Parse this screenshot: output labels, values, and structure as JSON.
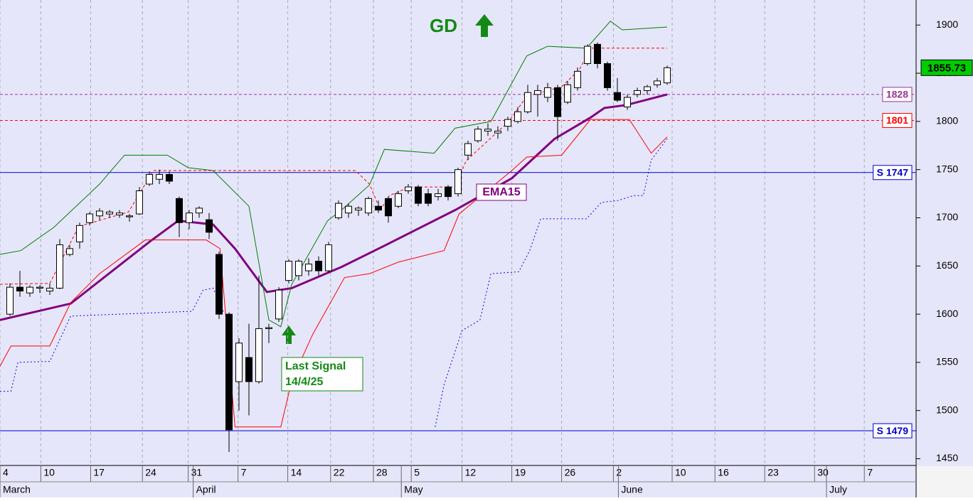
{
  "chart_data": {
    "type": "candlestick",
    "x": [
      1,
      2,
      3,
      4,
      5,
      6,
      7,
      8,
      9,
      10,
      11,
      12,
      13,
      14,
      15,
      16,
      17,
      18,
      19,
      20,
      21,
      22,
      23,
      24,
      25,
      26,
      27,
      28,
      29,
      30,
      31,
      32,
      33,
      34,
      35,
      36,
      37,
      38,
      39,
      40,
      41,
      42,
      43,
      44,
      45,
      46,
      47,
      48,
      49,
      50,
      51,
      52,
      53,
      54,
      55,
      56,
      57,
      58,
      59,
      60,
      61,
      62,
      63,
      64,
      65,
      66,
      67
    ],
    "open": [
      1600,
      1628,
      1622,
      1627,
      1624,
      1627,
      1662,
      1675,
      1695,
      1702,
      1704,
      1703,
      1701,
      1704,
      1735,
      1740,
      1745,
      1720,
      1695,
      1705,
      1698,
      1662,
      1600,
      1530,
      1555,
      1530,
      1585,
      1595,
      1635,
      1640,
      1645,
      1655,
      1645,
      1700,
      1705,
      1708,
      1705,
      1712,
      1720,
      1712,
      1728,
      1732,
      1725,
      1722,
      1732,
      1725,
      1765,
      1780,
      1790,
      1788,
      1795,
      1800,
      1810,
      1828,
      1825,
      1835,
      1820,
      1835,
      1860,
      1880,
      1860,
      1830,
      1815,
      1828,
      1832,
      1838,
      1840
    ],
    "high": [
      1632,
      1645,
      1630,
      1630,
      1632,
      1678,
      1672,
      1695,
      1706,
      1710,
      1708,
      1708,
      1704,
      1732,
      1748,
      1750,
      1748,
      1722,
      1708,
      1712,
      1705,
      1665,
      1602,
      1575,
      1590,
      1640,
      1590,
      1628,
      1657,
      1657,
      1658,
      1660,
      1675,
      1718,
      1715,
      1712,
      1722,
      1718,
      1722,
      1728,
      1735,
      1734,
      1730,
      1730,
      1734,
      1752,
      1780,
      1795,
      1798,
      1795,
      1805,
      1815,
      1838,
      1838,
      1840,
      1838,
      1842,
      1856,
      1880,
      1882,
      1862,
      1845,
      1828,
      1835,
      1838,
      1845,
      1858
    ],
    "low": [
      1598,
      1618,
      1618,
      1622,
      1620,
      1626,
      1660,
      1668,
      1692,
      1698,
      1700,
      1700,
      1696,
      1703,
      1733,
      1735,
      1735,
      1680,
      1688,
      1700,
      1678,
      1595,
      1457,
      1500,
      1495,
      1528,
      1570,
      1592,
      1632,
      1635,
      1640,
      1640,
      1643,
      1698,
      1700,
      1702,
      1702,
      1705,
      1695,
      1710,
      1725,
      1712,
      1712,
      1718,
      1718,
      1722,
      1760,
      1778,
      1785,
      1782,
      1790,
      1798,
      1808,
      1805,
      1820,
      1780,
      1818,
      1832,
      1858,
      1855,
      1832,
      1820,
      1812,
      1825,
      1828,
      1835,
      1838
    ],
    "close": [
      1628,
      1624,
      1628,
      1628,
      1627,
      1672,
      1668,
      1692,
      1704,
      1707,
      1706,
      1705,
      1702,
      1728,
      1745,
      1745,
      1738,
      1695,
      1705,
      1710,
      1685,
      1600,
      1480,
      1570,
      1530,
      1585,
      1586,
      1625,
      1655,
      1655,
      1652,
      1645,
      1672,
      1715,
      1712,
      1710,
      1720,
      1708,
      1702,
      1725,
      1732,
      1715,
      1715,
      1725,
      1722,
      1750,
      1777,
      1792,
      1792,
      1790,
      1802,
      1810,
      1830,
      1832,
      1835,
      1805,
      1838,
      1852,
      1878,
      1860,
      1835,
      1822,
      1825,
      1832,
      1836,
      1842,
      1855.73
    ],
    "up_color": "#ffffff",
    "down_color": "#000000",
    "lines": [
      {
        "color": "#800080",
        "style": "solid",
        "width": 3,
        "x": [
          0,
          7.1,
          15,
          17.9,
          21.4,
          23.6,
          26.8,
          29.3,
          34.3,
          38.6,
          45.7,
          51.4,
          55.7,
          59.3,
          60.7,
          62.9,
          67
        ],
        "values": [
          1594,
          1611,
          1675,
          1697,
          1693,
          1668,
          1623,
          1627,
          1649,
          1671,
          1708,
          1741,
          1782,
          1804,
          1814,
          1817,
          1828
        ]
      },
      {
        "color": "#008000",
        "style": "solid",
        "width": 1,
        "x": [
          0,
          2.1,
          5.4,
          10,
          12.5,
          16.8,
          18.9,
          21.4,
          25,
          27,
          28.2,
          29.3,
          32.9,
          34.3,
          37.1,
          38.6,
          43.6,
          45.7,
          49.3,
          52.9,
          55,
          58.9,
          61.3,
          62.5,
          67
        ],
        "values": [
          1662,
          1666,
          1690,
          1735,
          1765,
          1765,
          1752,
          1749,
          1712,
          1594,
          1587,
          1631,
          1697,
          1708,
          1734,
          1771,
          1767,
          1793,
          1800,
          1868,
          1878,
          1876,
          1904,
          1895,
          1898
        ]
      },
      {
        "color": "#ff0000",
        "style": "solid",
        "width": 1,
        "x": [
          0,
          1.1,
          5,
          7.1,
          10,
          14.6,
          20.7,
          22.1,
          23.6,
          28.2,
          29.3,
          31.4,
          34.6,
          37.1,
          40,
          44.6,
          46.1,
          51.4,
          52.9,
          56.4,
          59.3,
          63.2,
          65.4,
          67
        ],
        "values": [
          1546,
          1567,
          1567,
          1612,
          1642,
          1677,
          1677,
          1668,
          1483,
          1483,
          1531,
          1579,
          1638,
          1642,
          1654,
          1666,
          1704,
          1749,
          1763,
          1765,
          1802,
          1802,
          1767,
          1784
        ]
      },
      {
        "color": "#ff0000",
        "style": "dashed",
        "width": 1,
        "x": [
          0,
          5,
          7.9,
          12.9,
          15.4,
          35.7,
          37.1,
          38.2,
          39.1,
          41.1,
          45.7,
          46.8,
          51.1,
          52.9,
          56.4,
          58.2,
          59.3,
          67
        ],
        "values": [
          1631,
          1632,
          1691,
          1706,
          1749,
          1749,
          1735,
          1708,
          1723,
          1732,
          1732,
          1759,
          1800,
          1826,
          1836,
          1854,
          1876,
          1876
        ]
      },
      {
        "color": "#0000ff",
        "style": "dotted",
        "width": 1,
        "x": [
          0,
          1.1,
          1.8,
          5,
          7.1,
          19.3,
          20.4,
          21.4,
          22.5,
          33,
          43.7,
          44.6,
          46.4,
          48.2,
          49.3,
          52.1,
          53.2,
          54.3,
          58.9,
          60.4,
          62.1,
          63.6,
          64.6,
          65.4,
          67
        ],
        "values": [
          1520,
          1520,
          1550,
          1551,
          1598,
          1603,
          1625,
          1627,
          1601,
          null,
          1483,
          1527,
          1583,
          1594,
          1642,
          1644,
          1666,
          1699,
          1699,
          1716,
          1718,
          1723,
          1723,
          1760,
          1782
        ]
      }
    ],
    "levels": [
      {
        "value": 1828,
        "label": "1828",
        "color": "#993399",
        "style": "dashed"
      },
      {
        "value": 1801,
        "label": "1801",
        "color": "#ff0000",
        "style": "dashed"
      },
      {
        "value": 1747,
        "label": "S 1747",
        "color": "#0000cc",
        "style": "solid"
      },
      {
        "value": 1479,
        "label": "S 1479",
        "color": "#0000cc",
        "style": "solid"
      }
    ],
    "last_price": {
      "value": 1855.73,
      "label": "1855.73"
    },
    "xlim": [
      0,
      92
    ],
    "ylim": [
      1443,
      1926
    ],
    "yticks": [
      1450,
      1500,
      1550,
      1600,
      1650,
      1700,
      1750,
      1800,
      1850,
      1900
    ],
    "xticks": [
      {
        "value": 0,
        "label": "4"
      },
      {
        "value": 4.1,
        "label": "10"
      },
      {
        "value": 9.1,
        "label": "17"
      },
      {
        "value": 14.3,
        "label": "24"
      },
      {
        "value": 18.9,
        "label": "31"
      },
      {
        "value": 23.9,
        "label": "7"
      },
      {
        "value": 28.9,
        "label": "14"
      },
      {
        "value": 33.2,
        "label": "22"
      },
      {
        "value": 37.5,
        "label": "28"
      },
      {
        "value": 41.3,
        "label": "5"
      },
      {
        "value": 46.4,
        "label": "12"
      },
      {
        "value": 51.4,
        "label": "19"
      },
      {
        "value": 56.4,
        "label": "26"
      },
      {
        "value": 61.6,
        "label": "2"
      },
      {
        "value": 67.5,
        "label": "10"
      },
      {
        "value": 71.8,
        "label": "16"
      },
      {
        "value": 76.8,
        "label": "23"
      },
      {
        "value": 81.8,
        "label": "30"
      },
      {
        "value": 86.8,
        "label": "7"
      }
    ],
    "months": [
      {
        "value": 0,
        "label": "March"
      },
      {
        "value": 19.4,
        "label": "April"
      },
      {
        "value": 40.3,
        "label": "May"
      },
      {
        "value": 62.1,
        "label": "June"
      },
      {
        "value": 83,
        "label": "July"
      }
    ],
    "grid": true,
    "annotations": {
      "signal_type": "GD",
      "ema_label": "EMA15",
      "last_signal": [
        "Last Signal",
        "14/4/25"
      ]
    }
  }
}
